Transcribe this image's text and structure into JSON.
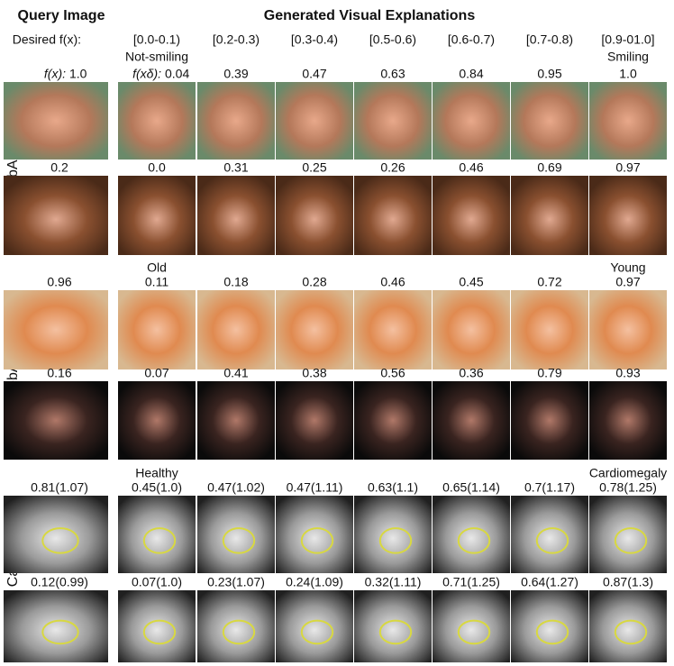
{
  "header": {
    "query_title": "Query Image",
    "generated_title": "Generated Visual Explanations",
    "desired_label": "Desired f(x):",
    "intervals": [
      "[0.0-0.1)",
      "[0.2-0.3)",
      "[0.3-0.4)",
      "[0.5-0.6)",
      "[0.6-0.7)",
      "[0.7-0.8)",
      "[0.9-01.0]"
    ]
  },
  "groups": [
    {
      "label": "CelebA: Smiling",
      "low_label": "Not-smiling",
      "high_label": "Smiling",
      "query_prefix": "f(x):",
      "generated_prefix": "f(xδ):",
      "rows": [
        {
          "query": "1.0",
          "generated": [
            "0.04",
            "0.39",
            "0.47",
            "0.63",
            "0.84",
            "0.95",
            "1.0"
          ]
        },
        {
          "query": "0.2",
          "generated": [
            "0.0",
            "0.31",
            "0.25",
            "0.26",
            "0.46",
            "0.69",
            "0.97"
          ]
        }
      ]
    },
    {
      "label": "CelebA: Young",
      "low_label": "Old",
      "high_label": "Young",
      "rows": [
        {
          "query": "0.96",
          "generated": [
            "0.11",
            "0.18",
            "0.28",
            "0.46",
            "0.45",
            "0.72",
            "0.97"
          ]
        },
        {
          "query": "0.16",
          "generated": [
            "0.07",
            "0.41",
            "0.38",
            "0.56",
            "0.36",
            "0.79",
            "0.93"
          ]
        }
      ]
    },
    {
      "label": "X-Ray: Cardiomegaly",
      "low_label": "Healthy",
      "high_label": "Cardiomegaly",
      "rows": [
        {
          "query": "0.81(1.07)",
          "generated": [
            "0.45(1.0)",
            "0.47(1.02)",
            "0.47(1.11)",
            "0.63(1.1)",
            "0.65(1.14)",
            "0.7(1.17)",
            "0.78(1.25)"
          ]
        },
        {
          "query": "0.12(0.99)",
          "generated": [
            "0.07(1.0)",
            "0.23(1.07)",
            "0.24(1.09)",
            "0.32(1.11)",
            "0.71(1.25)",
            "0.64(1.27)",
            "0.87(1.3)"
          ]
        }
      ]
    }
  ]
}
